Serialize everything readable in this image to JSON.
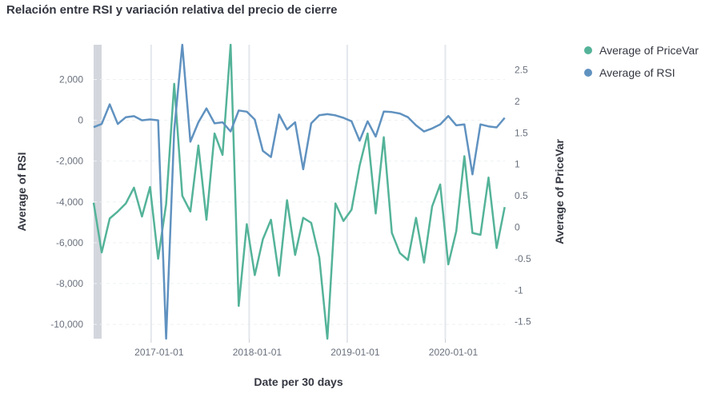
{
  "title": "Relación entre RSI y variación relativa del precio de cierre",
  "chart_data": {
    "type": "line",
    "xlabel": "Date per 30 days",
    "ylabel_left": "Average of RSI",
    "ylabel_right": "Average of PriceVar",
    "x_ticks": [
      "2017-01-01",
      "2018-01-01",
      "2019-01-01",
      "2020-01-01"
    ],
    "y_left_ticks": [
      2000,
      0,
      -2000,
      -4000,
      -6000,
      -8000,
      -10000
    ],
    "y_left_tick_labels": [
      "2,000",
      "0",
      "-2,000",
      "-4,000",
      "-6,000",
      "-8,000",
      "-10,000"
    ],
    "y_left_range": [
      -10700,
      3700
    ],
    "y_right_ticks": [
      2.5,
      2,
      1.5,
      1,
      0.5,
      0,
      -0.5,
      -1,
      -1.5
    ],
    "y_right_tick_labels": [
      "2.5",
      "2",
      "1.5",
      "1",
      "0.5",
      "0",
      "-0.5",
      "-1",
      "-1.5"
    ],
    "y_right_range": [
      -1.77,
      2.9
    ],
    "x_range": [
      "2016-06-01",
      "2020-08-10"
    ],
    "legend_position": "right",
    "grid": true,
    "series": [
      {
        "name": "Average of PriceVar",
        "axis": "right",
        "color": "#54b399",
        "x": [
          "2016-06-01",
          "2016-07-01",
          "2016-07-31",
          "2016-08-30",
          "2016-09-29",
          "2016-10-29",
          "2016-11-28",
          "2016-12-28",
          "2017-01-27",
          "2017-02-26",
          "2017-03-28",
          "2017-04-27",
          "2017-05-27",
          "2017-06-26",
          "2017-07-26",
          "2017-08-25",
          "2017-09-24",
          "2017-10-24",
          "2017-11-23",
          "2017-12-23",
          "2018-01-22",
          "2018-02-21",
          "2018-03-23",
          "2018-04-22",
          "2018-05-22",
          "2018-06-21",
          "2018-07-21",
          "2018-08-20",
          "2018-09-19",
          "2018-10-19",
          "2018-11-18",
          "2018-12-18",
          "2019-01-17",
          "2019-02-16",
          "2019-03-18",
          "2019-04-17",
          "2019-05-17",
          "2019-06-16",
          "2019-07-16",
          "2019-08-15",
          "2019-09-14",
          "2019-10-14",
          "2019-11-13",
          "2019-12-13",
          "2020-01-12",
          "2020-02-11",
          "2020-03-12",
          "2020-04-11",
          "2020-05-11",
          "2020-06-10",
          "2020-07-10",
          "2020-08-09"
        ],
        "values": [
          0.39,
          -0.4,
          0.14,
          0.25,
          0.38,
          0.63,
          0.17,
          0.64,
          -0.5,
          0.37,
          2.28,
          0.5,
          0.25,
          1.3,
          0.12,
          1.49,
          1.15,
          2.93,
          -1.25,
          0.05,
          -0.76,
          -0.19,
          0.12,
          -0.77,
          0.43,
          -0.44,
          0.15,
          0.07,
          -0.48,
          -1.78,
          0.38,
          0.1,
          0.28,
          0.98,
          1.49,
          0.22,
          1.43,
          -0.09,
          -0.41,
          -0.52,
          0.15,
          -0.56,
          0.33,
          0.68,
          -0.59,
          -0.06,
          1.13,
          -0.09,
          -0.12,
          0.79,
          -0.33,
          0.32
        ]
      },
      {
        "name": "Average of RSI",
        "axis": "left",
        "color": "#6092c0",
        "x": [
          "2016-06-01",
          "2016-07-01",
          "2016-07-31",
          "2016-08-30",
          "2016-09-29",
          "2016-10-29",
          "2016-11-28",
          "2016-12-28",
          "2017-01-27",
          "2017-02-26",
          "2017-03-28",
          "2017-04-27",
          "2017-05-27",
          "2017-06-26",
          "2017-07-26",
          "2017-08-25",
          "2017-09-24",
          "2017-10-24",
          "2017-11-23",
          "2017-12-23",
          "2018-01-22",
          "2018-02-21",
          "2018-03-23",
          "2018-04-22",
          "2018-05-22",
          "2018-06-21",
          "2018-07-21",
          "2018-08-20",
          "2018-09-19",
          "2018-10-19",
          "2018-11-18",
          "2018-12-18",
          "2019-01-17",
          "2019-02-16",
          "2019-03-18",
          "2019-04-17",
          "2019-05-17",
          "2019-06-16",
          "2019-07-16",
          "2019-08-15",
          "2019-09-14",
          "2019-10-14",
          "2019-11-13",
          "2019-12-13",
          "2020-01-12",
          "2020-02-11",
          "2020-03-12",
          "2020-04-11",
          "2020-05-11",
          "2020-06-10",
          "2020-07-10",
          "2020-08-09"
        ],
        "values": [
          -340,
          -180,
          780,
          -180,
          150,
          200,
          0,
          40,
          0,
          -10750,
          -500,
          3700,
          -1050,
          -100,
          580,
          -150,
          -100,
          -550,
          480,
          420,
          30,
          -1500,
          -1800,
          280,
          -450,
          -100,
          -2400,
          -150,
          250,
          300,
          240,
          120,
          -50,
          -1000,
          -50,
          -800,
          430,
          400,
          330,
          150,
          -250,
          -550,
          -400,
          -200,
          210,
          -250,
          -200,
          -2650,
          -200,
          -300,
          -350,
          120
        ]
      }
    ]
  },
  "legend": [
    {
      "label": "Average of PriceVar",
      "color": "#54b399"
    },
    {
      "label": "Average of RSI",
      "color": "#6092c0"
    }
  ]
}
